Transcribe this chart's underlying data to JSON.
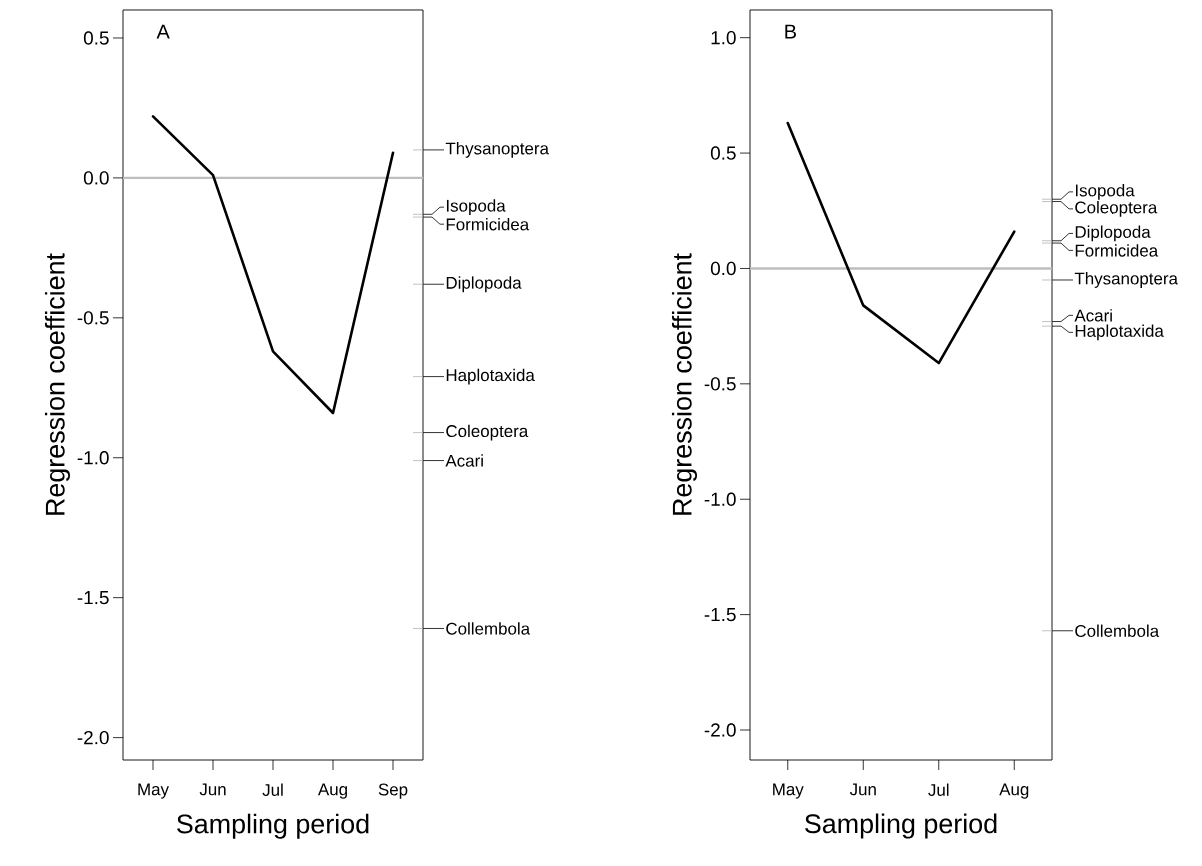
{
  "chart_data": [
    {
      "type": "line",
      "annotations": [
        "A"
      ],
      "xlabel": "Sampling period",
      "ylabel": "Regression coefficient",
      "categories": [
        "May",
        "Jun",
        "Jul",
        "Aug",
        "Sep"
      ],
      "series": [
        {
          "color": "#000000",
          "values": [
            0.22,
            0.01,
            -0.62,
            -0.84,
            0.09
          ]
        }
      ],
      "ylim": [
        -2.08,
        0.6
      ],
      "yticks": [
        {
          "value": 0.5,
          "label": "0.5"
        },
        {
          "value": 0,
          "label": "0.0"
        },
        {
          "value": -0.5,
          "label": "-0.5"
        },
        {
          "value": -1,
          "label": "-1.0"
        },
        {
          "value": -1.5,
          "label": "-1.5"
        },
        {
          "value": -2,
          "label": "-2.0"
        }
      ],
      "ref_lines": [
        {
          "axis": "y",
          "value": 0,
          "color": "#bebebe"
        },
        {
          "axis": "y",
          "value": 0.1,
          "label": "Thysanoptera",
          "color": "#000000"
        },
        {
          "axis": "y",
          "value": -0.13,
          "label": "Isopoda",
          "color": "#000000"
        },
        {
          "axis": "y",
          "value": -0.14,
          "label": "Formicidea",
          "color": "#000000"
        },
        {
          "axis": "y",
          "value": -0.38,
          "label": "Diplopoda",
          "color": "#000000"
        },
        {
          "axis": "y",
          "value": -0.71,
          "label": "Haplotaxida",
          "color": "#000000"
        },
        {
          "axis": "y",
          "value": -0.91,
          "label": "Coleoptera",
          "color": "#000000"
        },
        {
          "axis": "y",
          "value": -1.01,
          "label": "Acari",
          "color": "#000000"
        },
        {
          "axis": "y",
          "value": -1.61,
          "label": "Collembola",
          "color": "#000000"
        }
      ]
    },
    {
      "type": "line",
      "annotations": [
        "B"
      ],
      "xlabel": "Sampling period",
      "ylabel": "Regression coefficient",
      "categories": [
        "May",
        "Jun",
        "Jul",
        "Aug"
      ],
      "series": [
        {
          "color": "#000000",
          "values": [
            0.63,
            -0.16,
            -0.41,
            0.16
          ]
        }
      ],
      "ylim": [
        -2.13,
        1.12
      ],
      "yticks": [
        {
          "value": 1,
          "label": "1.0"
        },
        {
          "value": 0.5,
          "label": "0.5"
        },
        {
          "value": 0,
          "label": "0.0"
        },
        {
          "value": -0.5,
          "label": "-0.5"
        },
        {
          "value": -1,
          "label": "-1.0"
        },
        {
          "value": -1.5,
          "label": "-1.5"
        },
        {
          "value": -2,
          "label": "-2.0"
        }
      ],
      "ref_lines": [
        {
          "axis": "y",
          "value": 0,
          "color": "#bebebe"
        },
        {
          "axis": "y",
          "value": 0.3,
          "label": "Isopoda",
          "color": "#000000"
        },
        {
          "axis": "y",
          "value": 0.29,
          "label": "Coleoptera",
          "color": "#000000"
        },
        {
          "axis": "y",
          "value": 0.12,
          "label": "Diplopoda",
          "color": "#000000"
        },
        {
          "axis": "y",
          "value": 0.11,
          "label": "Formicidea",
          "color": "#000000"
        },
        {
          "axis": "y",
          "value": -0.05,
          "label": "Thysanoptera",
          "color": "#000000"
        },
        {
          "axis": "y",
          "value": -0.23,
          "label": "Acari",
          "color": "#000000"
        },
        {
          "axis": "y",
          "value": -0.25,
          "label": "Haplotaxida",
          "color": "#000000"
        },
        {
          "axis": "y",
          "value": -1.57,
          "label": "Collembola",
          "color": "#000000"
        }
      ]
    }
  ]
}
